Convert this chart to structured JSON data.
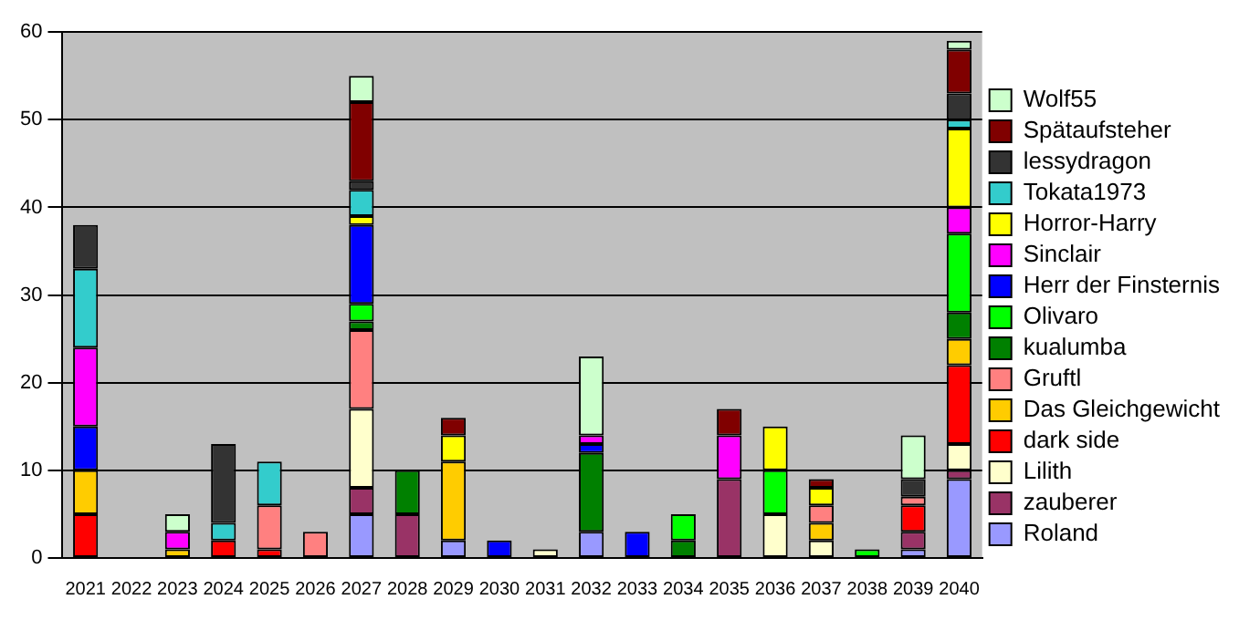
{
  "chart_data": {
    "type": "bar",
    "stacked": true,
    "legend": "right",
    "grid": "y",
    "ylim": [
      0,
      60
    ],
    "yticks": [
      0,
      10,
      20,
      30,
      40,
      50,
      60
    ],
    "categories": [
      "2021",
      "2022",
      "2023",
      "2024",
      "2025",
      "2026",
      "2027",
      "2028",
      "2029",
      "2030",
      "2031",
      "2032",
      "2033",
      "2034",
      "2035",
      "2036",
      "2037",
      "2038",
      "2039",
      "2040"
    ],
    "series": [
      {
        "name": "Roland",
        "color": "#9999ff",
        "values": [
          null,
          null,
          null,
          null,
          null,
          null,
          5,
          null,
          2,
          null,
          null,
          3,
          null,
          null,
          null,
          null,
          null,
          null,
          1,
          9
        ]
      },
      {
        "name": "zauberer",
        "color": "#993366",
        "values": [
          null,
          null,
          null,
          null,
          null,
          null,
          3,
          5,
          null,
          null,
          null,
          null,
          null,
          null,
          9,
          null,
          null,
          null,
          2,
          1
        ]
      },
      {
        "name": "Lilith",
        "color": "#ffffcc",
        "values": [
          null,
          null,
          null,
          null,
          null,
          null,
          9,
          null,
          null,
          null,
          1,
          null,
          null,
          null,
          null,
          5,
          2,
          null,
          null,
          3
        ]
      },
      {
        "name": "dark side",
        "color": "#ff0000",
        "values": [
          5,
          null,
          null,
          2,
          1,
          null,
          null,
          null,
          null,
          null,
          null,
          null,
          null,
          null,
          null,
          null,
          null,
          null,
          3,
          9
        ]
      },
      {
        "name": "Das Gleichgewicht",
        "color": "#ffcc00",
        "values": [
          5,
          null,
          1,
          null,
          null,
          null,
          null,
          null,
          9,
          null,
          null,
          null,
          null,
          null,
          null,
          null,
          2,
          null,
          null,
          3
        ]
      },
      {
        "name": "Gruftl",
        "color": "#ff8080",
        "values": [
          null,
          null,
          null,
          null,
          5,
          3,
          9,
          null,
          null,
          null,
          null,
          null,
          null,
          null,
          null,
          null,
          2,
          null,
          1,
          null
        ]
      },
      {
        "name": "kualumba",
        "color": "#008000",
        "values": [
          null,
          null,
          null,
          null,
          null,
          null,
          1,
          5,
          null,
          null,
          null,
          9,
          null,
          2,
          null,
          null,
          null,
          null,
          null,
          3
        ]
      },
      {
        "name": "Olivaro",
        "color": "#00ff00",
        "values": [
          null,
          null,
          null,
          null,
          null,
          null,
          2,
          null,
          null,
          null,
          null,
          null,
          null,
          3,
          null,
          5,
          null,
          1,
          null,
          9
        ]
      },
      {
        "name": "Herr der Finsternis",
        "color": "#0000ff",
        "values": [
          5,
          null,
          null,
          null,
          null,
          null,
          9,
          null,
          null,
          2,
          null,
          1,
          3,
          null,
          null,
          null,
          null,
          null,
          null,
          null
        ]
      },
      {
        "name": "Sinclair",
        "color": "#ff00ff",
        "values": [
          9,
          null,
          2,
          null,
          null,
          null,
          null,
          null,
          null,
          null,
          null,
          1,
          null,
          null,
          5,
          null,
          null,
          null,
          null,
          3
        ]
      },
      {
        "name": "Horror-Harry",
        "color": "#ffff00",
        "values": [
          null,
          null,
          null,
          null,
          null,
          null,
          1,
          null,
          3,
          null,
          null,
          null,
          null,
          null,
          null,
          5,
          2,
          null,
          null,
          9
        ]
      },
      {
        "name": "Tokata1973",
        "color": "#33cccc",
        "values": [
          9,
          null,
          null,
          2,
          5,
          null,
          3,
          null,
          null,
          null,
          null,
          null,
          null,
          null,
          null,
          null,
          null,
          null,
          null,
          1
        ]
      },
      {
        "name": "lessydragon",
        "color": "#333333",
        "values": [
          5,
          null,
          null,
          9,
          null,
          null,
          1,
          null,
          null,
          null,
          null,
          null,
          null,
          null,
          null,
          null,
          null,
          null,
          2,
          3
        ]
      },
      {
        "name": "Spätaufsteher",
        "color": "#800000",
        "values": [
          null,
          null,
          null,
          null,
          null,
          null,
          9,
          null,
          2,
          null,
          null,
          null,
          null,
          null,
          3,
          null,
          1,
          null,
          null,
          5
        ]
      },
      {
        "name": "Wolf55",
        "color": "#ccffcc",
        "values": [
          null,
          null,
          2,
          null,
          null,
          null,
          3,
          null,
          null,
          null,
          null,
          9,
          null,
          null,
          null,
          null,
          null,
          null,
          5,
          1
        ]
      }
    ]
  }
}
